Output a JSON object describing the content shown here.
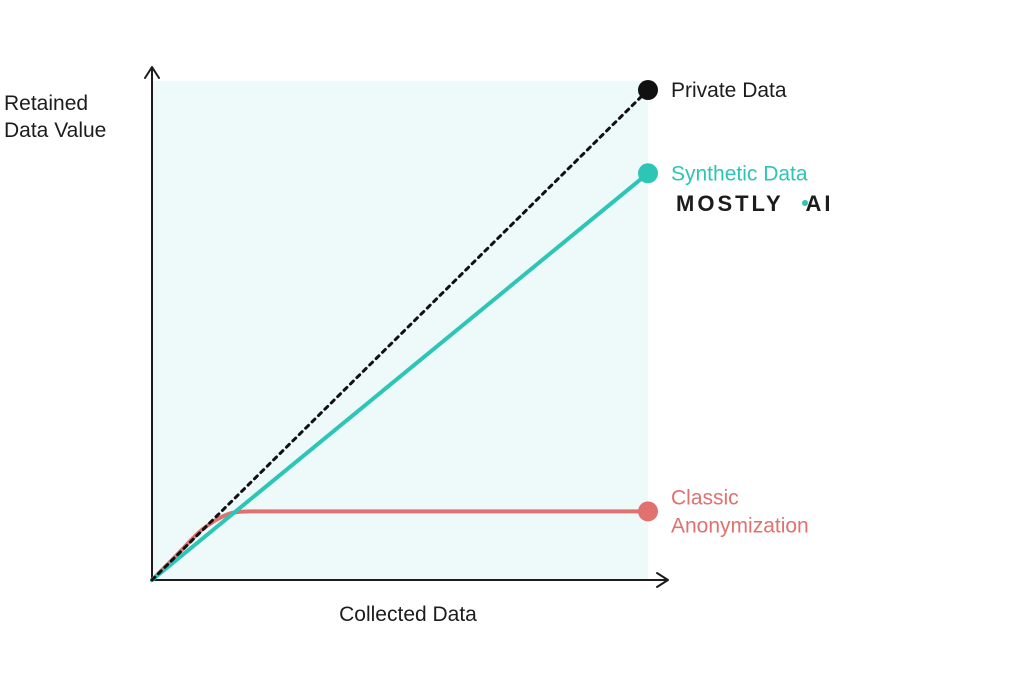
{
  "chart_data": {
    "type": "line",
    "title": "",
    "xlabel": "Collected Data",
    "ylabel_lines": [
      "Retained",
      "Data Value"
    ],
    "xlim": [
      0,
      100
    ],
    "ylim": [
      0,
      100
    ],
    "grid": false,
    "plot_background": "#eef9fa",
    "axis_color": "#1c1c1c",
    "series": [
      {
        "name": "Private Data",
        "label_lines": [
          "Private Data"
        ],
        "color": "#111111",
        "label_color": "#1c1c1c",
        "style": "dotted",
        "x": [
          0,
          100
        ],
        "y": [
          0,
          100
        ]
      },
      {
        "name": "Synthetic Data",
        "label_lines": [
          "Synthetic Data"
        ],
        "color": "#2cc5b6",
        "label_color": "#2cc5b6",
        "style": "solid",
        "x": [
          0,
          100
        ],
        "y": [
          0,
          83
        ]
      },
      {
        "name": "Classic Anonymization",
        "label_lines": [
          "Classic",
          "Anonymization"
        ],
        "color": "#e0716e",
        "label_color": "#e0716e",
        "style": "solid",
        "x": [
          0,
          5,
          10,
          15,
          18,
          22,
          30,
          50,
          70,
          100
        ],
        "y": [
          0,
          5,
          10.5,
          13.5,
          14,
          14,
          14,
          14,
          14,
          14
        ]
      }
    ],
    "annotations": {
      "brand_left": "MOSTLY",
      "brand_right": "AI",
      "brand_dot_color": "#2cc5b6"
    }
  }
}
